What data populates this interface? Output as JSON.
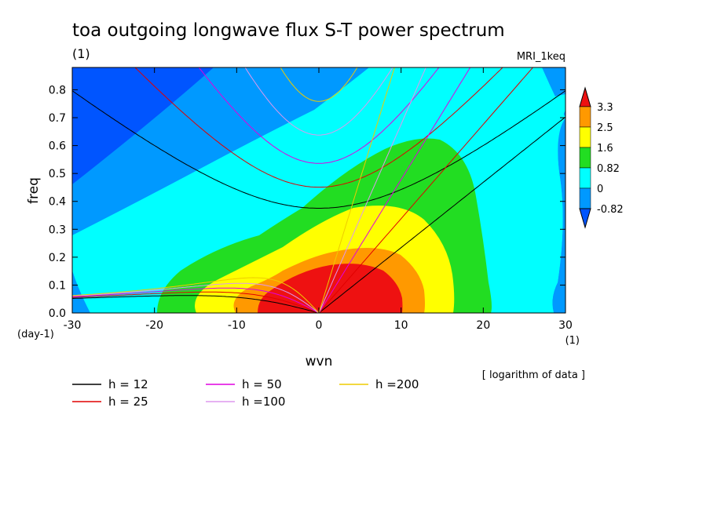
{
  "chart_data": {
    "type": "heatmap",
    "title": "toa outgoing longwave flux S-T power spectrum",
    "subtitle_left": "(1)",
    "subtitle_right": "MRI_1keq",
    "xlabel": "wvn",
    "ylabel": "freq",
    "x_unit": "(1)",
    "y_unit": "(day-1)",
    "xlim": [
      -30,
      30
    ],
    "ylim": [
      0,
      0.88
    ],
    "xticks": [
      -30,
      -20,
      -10,
      0,
      10,
      20,
      30
    ],
    "yticks": [
      0.0,
      0.1,
      0.2,
      0.3,
      0.4,
      0.5,
      0.6,
      0.7,
      0.8
    ],
    "note": "[ logarithm of data ]",
    "colorbar": {
      "labels": [
        "3.3",
        "2.5",
        "1.6",
        "0.82",
        "0",
        "-0.82"
      ],
      "colors": [
        "#ee1111",
        "#ff9900",
        "#ffff00",
        "#22dd22",
        "#00ffff",
        "#0099ff",
        "#0055ff"
      ]
    },
    "dispersion_curves": [
      {
        "name": "h = 12",
        "h": 12,
        "color": "#000000"
      },
      {
        "name": "h = 25",
        "h": 25,
        "color": "#e00000"
      },
      {
        "name": "h = 50",
        "h": 50,
        "color": "#e000e0"
      },
      {
        "name": "h =100",
        "h": 100,
        "color": "#dd99ee"
      },
      {
        "name": "h =200",
        "h": 200,
        "color": "#eecc00"
      }
    ]
  }
}
